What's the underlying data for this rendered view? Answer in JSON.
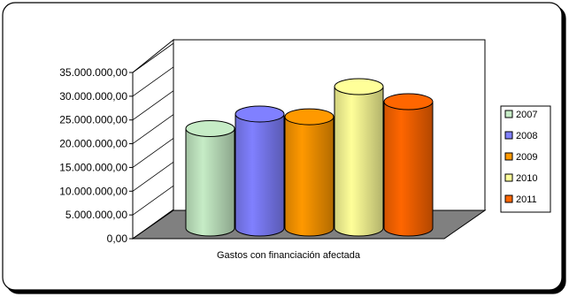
{
  "chart_data": {
    "type": "bar",
    "bar_shape": "cylinder",
    "three_d": true,
    "categories": [
      "Gastos con financiación afectada"
    ],
    "xlabel": "Gastos con financiación afectada",
    "ylabel": "",
    "title": "",
    "ylim": [
      0,
      35000000
    ],
    "yticks": [
      0,
      5000000,
      10000000,
      15000000,
      20000000,
      25000000,
      30000000,
      35000000
    ],
    "ytick_labels": [
      "0,00",
      "5.000.000,00",
      "10.000.000,00",
      "15.000.000,00",
      "20.000.000,00",
      "25.000.000,00",
      "30.000.000,00",
      "35.000.000,00"
    ],
    "grid": false,
    "legend_position": "right",
    "series": [
      {
        "name": "2007",
        "values": [
          21800000
        ],
        "color": "#c6ecc6"
      },
      {
        "name": "2008",
        "values": [
          25000000
        ],
        "color": "#8080ff"
      },
      {
        "name": "2009",
        "values": [
          24400000
        ],
        "color": "#ff9900"
      },
      {
        "name": "2010",
        "values": [
          31000000
        ],
        "color": "#ffff99"
      },
      {
        "name": "2011",
        "values": [
          27700000
        ],
        "color": "#ff6600"
      }
    ]
  }
}
